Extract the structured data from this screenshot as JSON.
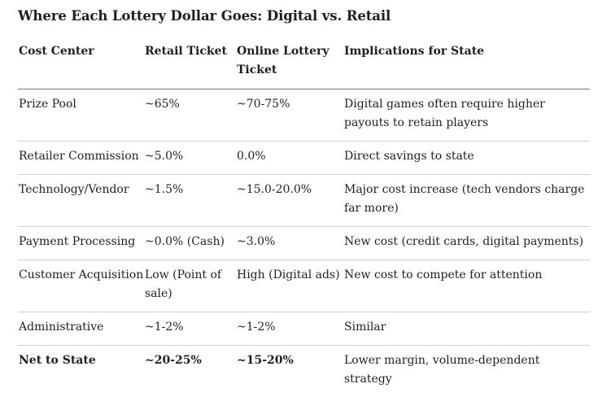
{
  "title": "Where Each Lottery Dollar Goes: Digital vs. Retail",
  "table": {
    "headers": [
      "Cost Center",
      "Retail Ticket",
      "Online Lottery Ticket",
      "Implications for State"
    ],
    "rows": [
      [
        "Prize Pool",
        "~65%",
        "~70-75%",
        "Digital games often require higher payouts to retain players"
      ],
      [
        "Retailer Commission",
        "~5.0%",
        "0.0%",
        "Direct savings to state"
      ],
      [
        "Technology/Vendor",
        "~1.5%",
        "~15.0-20.0%",
        "Major cost increase (tech vendors charge far more)"
      ],
      [
        "Payment Processing",
        "~0.0% (Cash)",
        "~3.0%",
        "New cost (credit cards, digital payments)"
      ],
      [
        "Customer Acquisition",
        "Low (Point of sale)",
        "High (Digital ads)",
        "New cost to compete for attention"
      ],
      [
        "Administrative",
        "~1-2%",
        "~1-2%",
        "Similar"
      ],
      [
        "Net to State",
        "~20-25%",
        "~15-20%",
        "Lower margin, volume-dependent strategy"
      ]
    ]
  }
}
